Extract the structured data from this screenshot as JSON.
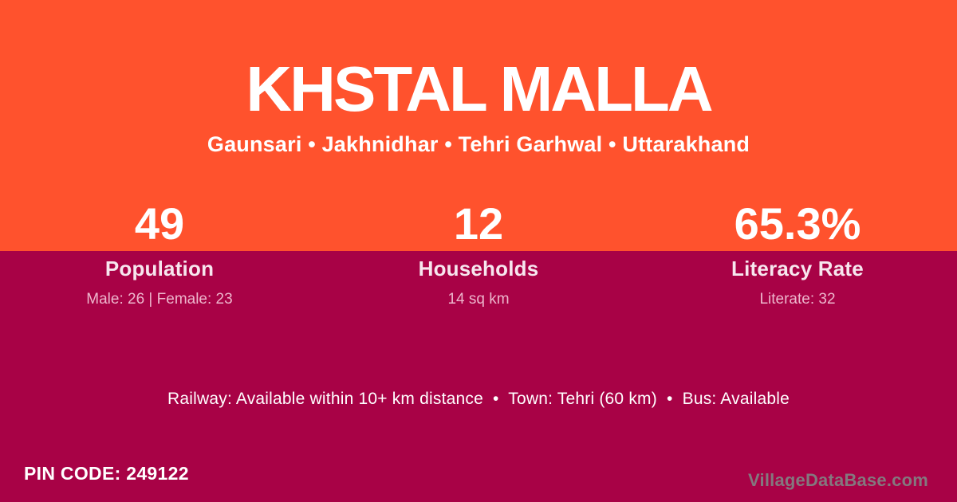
{
  "card": {
    "title": "KHSTAL MALLA",
    "subtitle": "Gaunsari • Jakhnidhar • Tehri Garhwal • Uttarakhand",
    "stats": [
      {
        "value": "49",
        "label": "Population",
        "detail": "Male: 26 | Female: 23"
      },
      {
        "value": "12",
        "label": "Households",
        "detail": "14 sq km"
      },
      {
        "value": "65.3%",
        "label": "Literacy Rate",
        "detail": "Literate: 32"
      }
    ],
    "facilities_line": "Railway: Available within 10+ km distance  •  Town: Tehri (60 km)  •  Bus: Available",
    "pin_code": "PIN CODE: 249122",
    "watermark": "VillageDataBase.com"
  },
  "colors": {
    "top_background": "#FF522D",
    "bottom_background": "#A80246",
    "text_primary": "#FFFFFF",
    "label_text": "#F7E6EE",
    "detail_text": "#EDB6CC",
    "watermark_text": "#84787E"
  }
}
